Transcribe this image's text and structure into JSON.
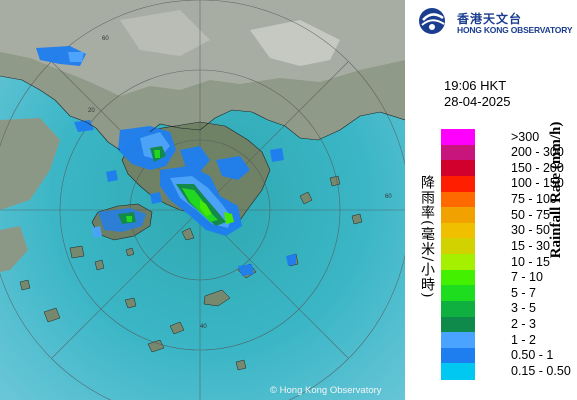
{
  "header": {
    "org_name_zh": "香港天文台",
    "org_name_en": "HONG KONG OBSERVATORY"
  },
  "timestamp": {
    "time": "19:06 HKT",
    "date": "28-04-2025"
  },
  "legend": {
    "title_en": "Rainfall Rate (mm/h)",
    "title_zh": "降雨率(毫米/小時)",
    "entries": [
      {
        "label": ">300",
        "color": "#ff00ff"
      },
      {
        "label": "200 - 300",
        "color": "#c8147d"
      },
      {
        "label": "150 - 200",
        "color": "#d2002d"
      },
      {
        "label": "100 - 150",
        "color": "#ff1e00"
      },
      {
        "label": "75 - 100",
        "color": "#ff6a00"
      },
      {
        "label": "50 - 75",
        "color": "#f2a200"
      },
      {
        "label": "30 - 50",
        "color": "#f0c000"
      },
      {
        "label": "15 - 30",
        "color": "#d2d200"
      },
      {
        "label": "10 - 15",
        "color": "#a4f000"
      },
      {
        "label": "7 - 10",
        "color": "#42f000"
      },
      {
        "label": "5 - 7",
        "color": "#1edc1e"
      },
      {
        "label": "3 - 5",
        "color": "#10b040"
      },
      {
        "label": "2 - 3",
        "color": "#0f8a4a"
      },
      {
        "label": "1 - 2",
        "color": "#4aa4ff"
      },
      {
        "label": "0.50 - 1",
        "color": "#1e7ef0"
      },
      {
        "label": "0.15 - 0.50",
        "color": "#00c8f0"
      }
    ]
  },
  "map": {
    "range_rings": [
      "60",
      "40",
      "20"
    ],
    "copyright": "© Hong Kong Observatory"
  }
}
